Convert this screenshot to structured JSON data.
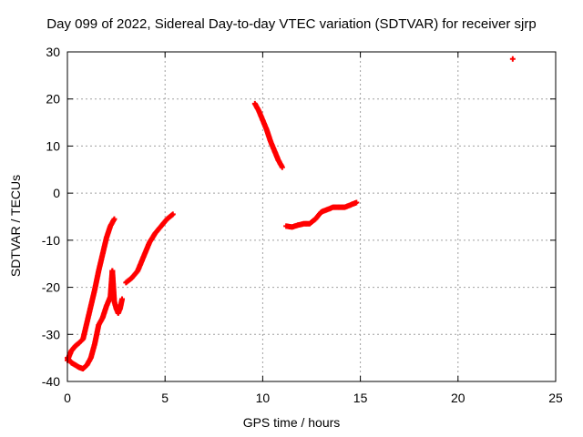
{
  "chart_data": {
    "type": "scatter",
    "title": "Day 099 of 2022, Sidereal Day-to-day VTEC variation (SDTVAR) for receiver sjrp",
    "xlabel": "GPS time / hours",
    "ylabel": "SDTVAR / TECUs",
    "xlim": [
      0,
      25
    ],
    "ylim": [
      -40,
      30
    ],
    "xticks": [
      0,
      5,
      10,
      15,
      20,
      25
    ],
    "yticks": [
      -40,
      -30,
      -20,
      -10,
      0,
      10,
      20,
      30
    ],
    "xtick_labels": [
      "0",
      "5",
      "10",
      "15",
      "20",
      "25"
    ],
    "ytick_labels": [
      "-40",
      "-30",
      "-20",
      "-10",
      "0",
      "10",
      "20",
      "30"
    ],
    "grid": true,
    "marker": "plus",
    "color": "#ff0000",
    "series": [
      {
        "x": [
          0.0,
          0.2,
          0.4,
          0.6,
          0.8,
          1.0,
          1.2,
          1.4,
          1.6,
          1.8,
          2.0,
          2.2,
          2.4
        ],
        "y": [
          -35.5,
          -33.5,
          -32.5,
          -31.8,
          -31.0,
          -27.5,
          -24.0,
          -20.5,
          -16.5,
          -13.0,
          -9.5,
          -7.0,
          -5.5
        ]
      },
      {
        "x": [
          0.0,
          0.2,
          0.4,
          0.6,
          0.8,
          1.0,
          1.2,
          1.4,
          1.6,
          1.8,
          2.0,
          2.2,
          2.3
        ],
        "y": [
          -35.0,
          -36.0,
          -36.5,
          -37.0,
          -37.3,
          -36.5,
          -35.0,
          -32.0,
          -28.0,
          -26.5,
          -24.0,
          -22.0,
          -16.5
        ]
      },
      {
        "x": [
          2.3,
          2.4,
          2.5,
          2.6,
          2.7,
          2.8
        ],
        "y": [
          -16.5,
          -23.0,
          -24.5,
          -25.5,
          -24.5,
          -22.5
        ]
      },
      {
        "x": [
          3.0,
          3.3,
          3.6,
          3.9,
          4.2,
          4.5,
          4.8,
          5.1,
          5.4
        ],
        "y": [
          -19.0,
          -18.0,
          -16.5,
          -13.5,
          -10.5,
          -8.5,
          -7.0,
          -5.5,
          -4.5
        ]
      },
      {
        "x": [
          9.6,
          9.8,
          10.0,
          10.2,
          10.4,
          10.6,
          10.8,
          11.0
        ],
        "y": [
          19.0,
          17.5,
          15.5,
          13.5,
          11.0,
          9.0,
          7.0,
          5.5
        ]
      },
      {
        "x": [
          11.2,
          11.5,
          11.8,
          12.1,
          12.4,
          12.7,
          13.0,
          13.3,
          13.6,
          13.9,
          14.2,
          14.5,
          14.8
        ],
        "y": [
          -7.0,
          -7.2,
          -6.8,
          -6.5,
          -6.5,
          -5.5,
          -4.0,
          -3.5,
          -3.0,
          -3.0,
          -3.0,
          -2.5,
          -2.0
        ]
      },
      {
        "x": [
          22.8
        ],
        "y": [
          28.5
        ]
      }
    ]
  }
}
